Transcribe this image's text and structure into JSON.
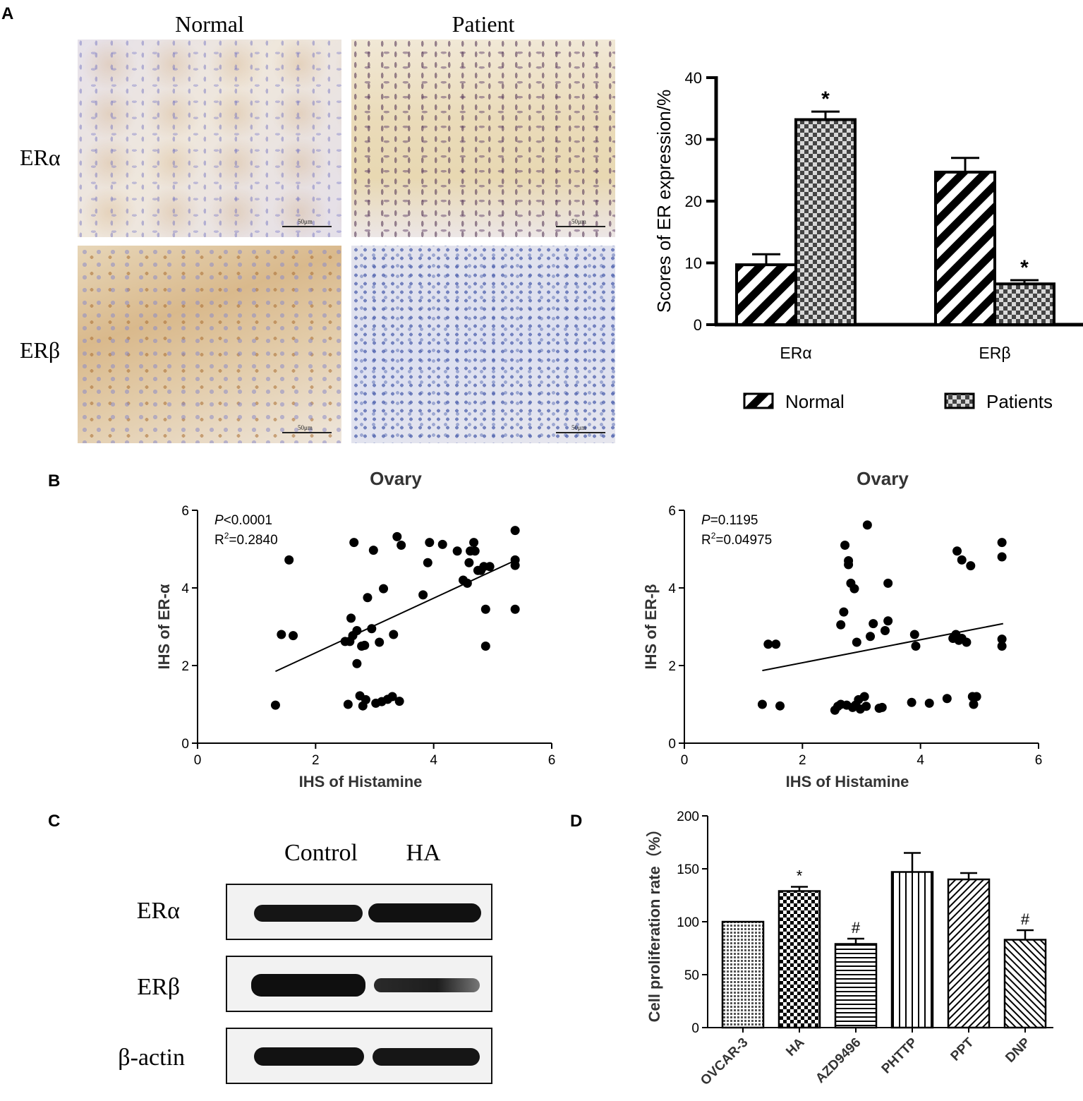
{
  "panels": {
    "a": {
      "letter": "A",
      "micrographs": {
        "col_labels": [
          "Normal",
          "Patient"
        ],
        "row_labels": [
          "ERα",
          "ERβ"
        ],
        "scale_label": "50μm"
      }
    },
    "b": {
      "letter": "B"
    },
    "c": {
      "letter": "C",
      "col_labels": [
        "Control",
        "HA"
      ],
      "row_labels": [
        "ERα",
        "ERβ",
        "β-actin"
      ]
    },
    "d": {
      "letter": "D"
    }
  },
  "colors": {
    "ink": "#000000",
    "blot_band": "#141414"
  },
  "chart_data": [
    {
      "id": "A-bar",
      "type": "bar",
      "categories": [
        "ERα",
        "ERβ"
      ],
      "series": [
        {
          "name": "Normal",
          "pattern": "diagonal-stripes",
          "values": [
            9.7,
            24.7
          ],
          "errors": [
            1.7,
            2.3
          ]
        },
        {
          "name": "Patients",
          "pattern": "checkerboard",
          "values": [
            33.2,
            6.6
          ],
          "errors": [
            1.3,
            0.6
          ]
        }
      ],
      "significance": [
        "*",
        "*"
      ],
      "ylabel": "Scores of ER expression/%",
      "ylim": [
        0,
        40
      ],
      "yticks": [
        "0",
        "10",
        "20",
        "30",
        "40"
      ],
      "legend_position": "bottom",
      "grid": false
    },
    {
      "id": "B-left",
      "type": "scatter",
      "title": "Ovary",
      "xlabel": "IHS of Histamine",
      "ylabel": "IHS of ER-α",
      "xlim": [
        0,
        6
      ],
      "ylim": [
        0,
        6
      ],
      "xticks": [
        "0",
        "2",
        "4",
        "6"
      ],
      "yticks": [
        "0",
        "2",
        "4",
        "6"
      ],
      "stats": {
        "p_label": "P",
        "p_text": "<0.0001",
        "r2_label": "R",
        "r2_sup": "2",
        "r2_text": "=0.2840"
      },
      "fit_line": {
        "x": [
          1.32,
          5.4
        ],
        "y": [
          1.85,
          4.72
        ]
      },
      "points": [
        [
          1.32,
          0.98
        ],
        [
          1.42,
          2.8
        ],
        [
          1.55,
          4.72
        ],
        [
          1.62,
          2.77
        ],
        [
          2.55,
          1.0
        ],
        [
          2.58,
          2.62
        ],
        [
          2.6,
          3.22
        ],
        [
          2.63,
          2.77
        ],
        [
          2.7,
          2.9
        ],
        [
          2.7,
          2.05
        ],
        [
          2.75,
          1.22
        ],
        [
          2.78,
          2.5
        ],
        [
          2.8,
          0.96
        ],
        [
          2.83,
          2.52
        ],
        [
          2.85,
          1.12
        ],
        [
          2.88,
          3.75
        ],
        [
          2.95,
          2.95
        ],
        [
          2.98,
          4.97
        ],
        [
          3.02,
          1.03
        ],
        [
          3.08,
          2.6
        ],
        [
          3.12,
          1.07
        ],
        [
          3.15,
          3.98
        ],
        [
          3.22,
          1.13
        ],
        [
          3.3,
          1.2
        ],
        [
          3.32,
          2.8
        ],
        [
          3.38,
          5.32
        ],
        [
          3.42,
          1.08
        ],
        [
          3.45,
          5.1
        ],
        [
          2.65,
          5.17
        ],
        [
          3.82,
          3.82
        ],
        [
          3.9,
          4.65
        ],
        [
          3.93,
          5.17
        ],
        [
          4.15,
          5.12
        ],
        [
          4.4,
          4.95
        ],
        [
          4.5,
          4.2
        ],
        [
          4.57,
          4.12
        ],
        [
          4.6,
          4.65
        ],
        [
          4.62,
          4.95
        ],
        [
          4.68,
          5.17
        ],
        [
          4.7,
          4.95
        ],
        [
          4.75,
          4.45
        ],
        [
          4.8,
          4.45
        ],
        [
          4.85,
          4.55
        ],
        [
          4.88,
          3.45
        ],
        [
          4.88,
          2.5
        ],
        [
          4.95,
          4.55
        ],
        [
          5.38,
          5.48
        ],
        [
          5.38,
          4.72
        ],
        [
          5.38,
          4.58
        ],
        [
          5.38,
          3.45
        ],
        [
          2.5,
          2.62
        ]
      ]
    },
    {
      "id": "B-right",
      "type": "scatter",
      "title": "Ovary",
      "xlabel": "IHS of Histamine",
      "ylabel": "IHS of ER-β",
      "xlim": [
        0,
        6
      ],
      "ylim": [
        0,
        6
      ],
      "xticks": [
        "0",
        "2",
        "4",
        "6"
      ],
      "yticks": [
        "0",
        "2",
        "4",
        "6"
      ],
      "stats": {
        "p_label": "P",
        "p_text": "=0.1195",
        "r2_label": "R",
        "r2_sup": "2",
        "r2_text": "=0.04975"
      },
      "fit_line": {
        "x": [
          1.32,
          5.4
        ],
        "y": [
          1.87,
          3.08
        ]
      },
      "points": [
        [
          1.32,
          1.0
        ],
        [
          1.42,
          2.55
        ],
        [
          1.55,
          2.55
        ],
        [
          1.62,
          0.96
        ],
        [
          2.55,
          0.85
        ],
        [
          2.6,
          0.95
        ],
        [
          2.65,
          1.0
        ],
        [
          2.65,
          3.05
        ],
        [
          2.7,
          3.38
        ],
        [
          2.72,
          5.1
        ],
        [
          2.75,
          0.98
        ],
        [
          2.78,
          4.7
        ],
        [
          2.78,
          4.6
        ],
        [
          2.82,
          4.12
        ],
        [
          2.85,
          0.92
        ],
        [
          2.88,
          3.98
        ],
        [
          2.9,
          0.98
        ],
        [
          2.92,
          2.6
        ],
        [
          2.95,
          1.12
        ],
        [
          2.98,
          0.88
        ],
        [
          3.05,
          1.2
        ],
        [
          3.08,
          0.95
        ],
        [
          3.1,
          5.62
        ],
        [
          3.15,
          2.75
        ],
        [
          3.2,
          3.08
        ],
        [
          3.3,
          0.9
        ],
        [
          3.35,
          0.92
        ],
        [
          3.4,
          2.9
        ],
        [
          3.45,
          3.15
        ],
        [
          3.45,
          4.12
        ],
        [
          3.85,
          1.05
        ],
        [
          3.9,
          2.8
        ],
        [
          3.92,
          2.5
        ],
        [
          4.15,
          1.03
        ],
        [
          4.45,
          1.15
        ],
        [
          4.55,
          2.7
        ],
        [
          4.6,
          2.8
        ],
        [
          4.62,
          4.95
        ],
        [
          4.65,
          2.65
        ],
        [
          4.7,
          4.72
        ],
        [
          4.78,
          2.6
        ],
        [
          4.85,
          4.57
        ],
        [
          4.88,
          1.2
        ],
        [
          4.9,
          1.0
        ],
        [
          4.95,
          1.2
        ],
        [
          5.38,
          5.17
        ],
        [
          5.38,
          4.8
        ],
        [
          5.38,
          2.68
        ],
        [
          5.38,
          2.5
        ],
        [
          4.7,
          2.7
        ]
      ]
    },
    {
      "id": "D",
      "type": "bar",
      "categories": [
        "OVCAR-3",
        "HA",
        "AZD9496",
        "PHTTP",
        "PPT",
        "DNP"
      ],
      "values": [
        100,
        129,
        79,
        147,
        140,
        83
      ],
      "errors": [
        0,
        4,
        5,
        18,
        6,
        9
      ],
      "patterns": [
        "dots",
        "checker",
        "hlines",
        "vlines",
        "diag-up",
        "diag-down"
      ],
      "annotations": [
        "",
        "*",
        "#",
        "",
        "",
        "#"
      ],
      "ylabel": "Cell proliferation rate（%）",
      "ylim": [
        0,
        200
      ],
      "yticks": [
        "0",
        "50",
        "100",
        "150",
        "200"
      ],
      "grid": false
    }
  ]
}
